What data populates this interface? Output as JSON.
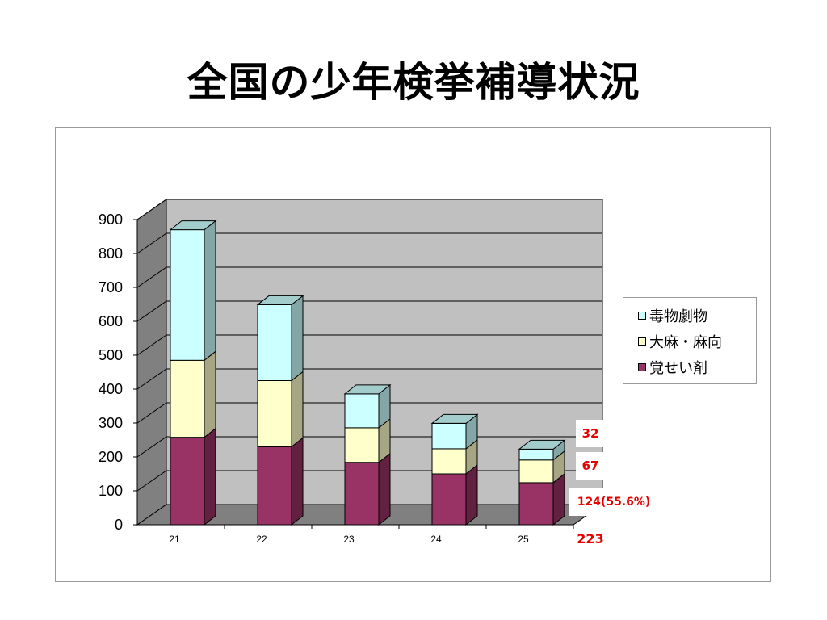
{
  "title": "全国の少年検挙補導状況",
  "chart_data": {
    "type": "bar",
    "stacked": true,
    "three_d": true,
    "categories": [
      "21",
      "22",
      "23",
      "24",
      "25"
    ],
    "series": [
      {
        "name": "覚せい剤",
        "values": [
          258,
          230,
          184,
          150,
          124
        ],
        "color": "#993366"
      },
      {
        "name": "大麻・麻向",
        "values": [
          227,
          195,
          102,
          74,
          67
        ],
        "color": "#ffffcc"
      },
      {
        "name": "毒物劇物",
        "values": [
          385,
          224,
          100,
          75,
          32
        ],
        "color": "#ccffff"
      }
    ],
    "yticks": [
      "0",
      "100",
      "200",
      "300",
      "400",
      "500",
      "600",
      "700",
      "800",
      "900"
    ],
    "ylim": [
      0,
      900
    ],
    "grid": true,
    "legend_position": "right",
    "annotations": [
      "32",
      "67",
      "124(55.6%)",
      "223"
    ]
  }
}
